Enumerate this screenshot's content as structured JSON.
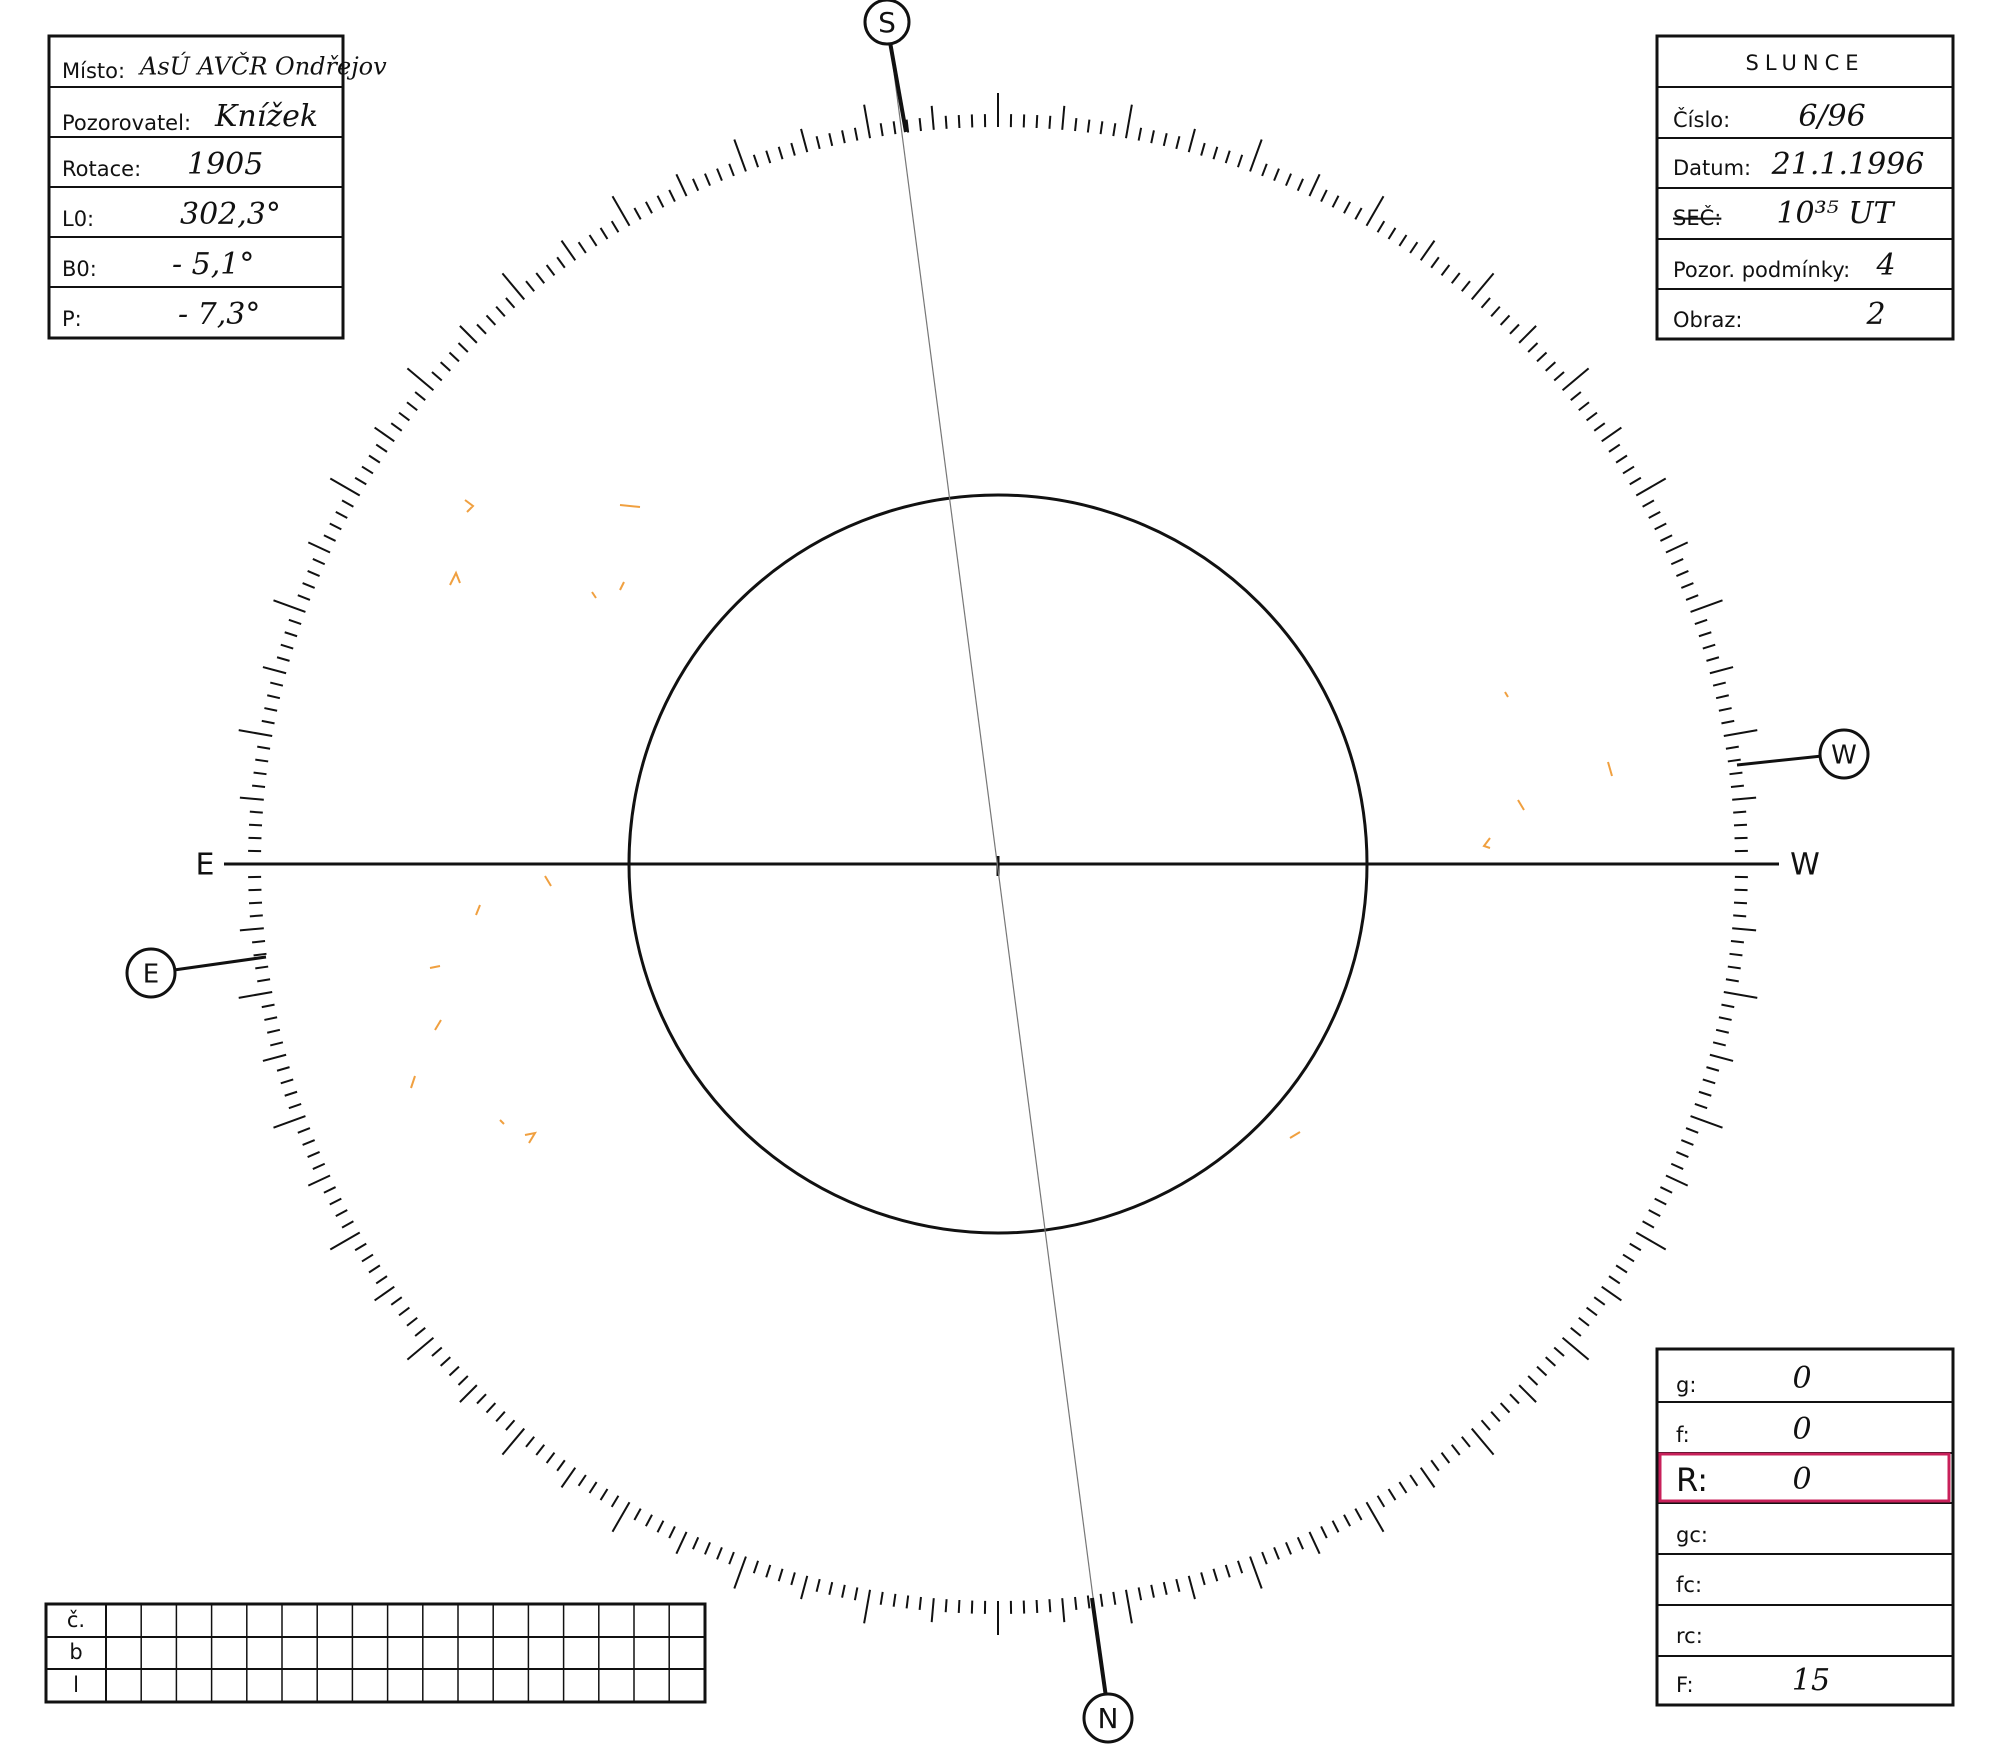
{
  "left_table": {
    "place_label": "Místo:",
    "place": "AsÚ AVČR Ondřejov",
    "observer_label": "Pozorovatel:",
    "observer": "Knížek",
    "rotation_label": "Rotace:",
    "rotation": "1905",
    "l0_label": "L0:",
    "l0": "302,3°",
    "b0_label": "B0:",
    "b0": "- 5,1°",
    "p_label": "P:",
    "p": "- 7,3°"
  },
  "right_table": {
    "title": "SLUNCE",
    "number_label": "Číslo:",
    "number": "6/96",
    "date_label": "Datum:",
    "date": "21.1.1996",
    "time_label": "SEČ:",
    "time": "10³⁵ UT",
    "conditions_label": "Pozor. podmínky:",
    "conditions": "4",
    "image_label": "Obraz:",
    "image": "2"
  },
  "counts_table": {
    "g_label": "g:",
    "g": "0",
    "f_label": "f:",
    "f": "0",
    "r_label": "R:",
    "r": "0",
    "gc_label": "gc:",
    "fc_label": "fc:",
    "rc_label": "rc:",
    "f_total_label": "F:",
    "f_total": "15"
  },
  "grid_table": {
    "row_labels": [
      "č.",
      "b",
      "l"
    ]
  },
  "compass": {
    "south": "S",
    "north": "N",
    "west_circle": "W",
    "east_circle": "E",
    "east": "E",
    "west": "W"
  }
}
